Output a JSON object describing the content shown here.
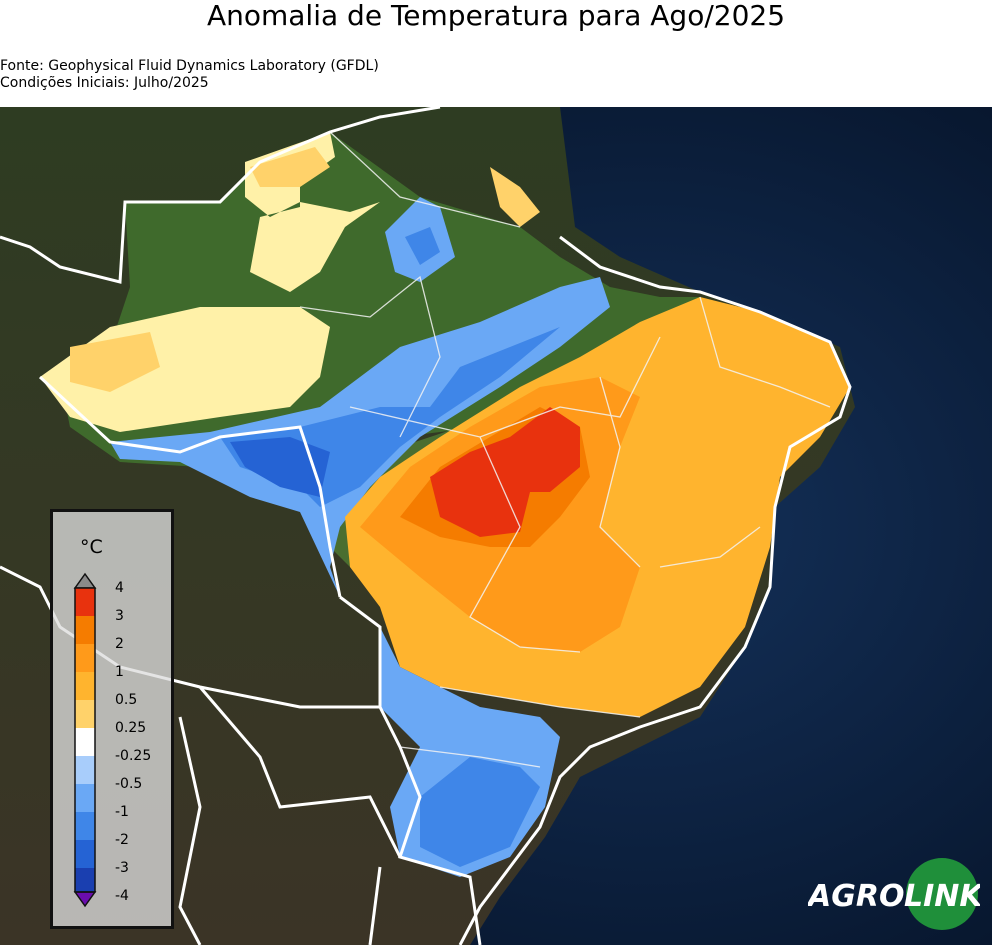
{
  "title": "Anomalia de Temperatura para Ago/2025",
  "source_line": "Fonte: Geophysical Fluid Dynamics Laboratory (GFDL)",
  "initial_conditions_line": "Condições Iniciais: Julho/2025",
  "legend": {
    "unit": "°C",
    "ticks": [
      "4",
      "3",
      "2",
      "1",
      "0.5",
      "0.25",
      "-0.25",
      "-0.5",
      "-1",
      "-2",
      "-3",
      "-4"
    ],
    "colors": [
      "#e8320e",
      "#f57c00",
      "#ff9a1a",
      "#ffb42e",
      "#ffd26a",
      "#fff1a8",
      "#ffffff",
      "#a8cdfb",
      "#6aa8f5",
      "#3f86e8",
      "#2563d4",
      "#1a3fb0",
      "#6a0dad"
    ]
  },
  "map": {
    "region": "Brasil",
    "ocean_color": "#0b1d3a",
    "land_color": "#2f3a2a",
    "forest_color": "#3b5b2a"
  },
  "logo": {
    "text_left": "AGRO",
    "text_right": "LINK"
  }
}
